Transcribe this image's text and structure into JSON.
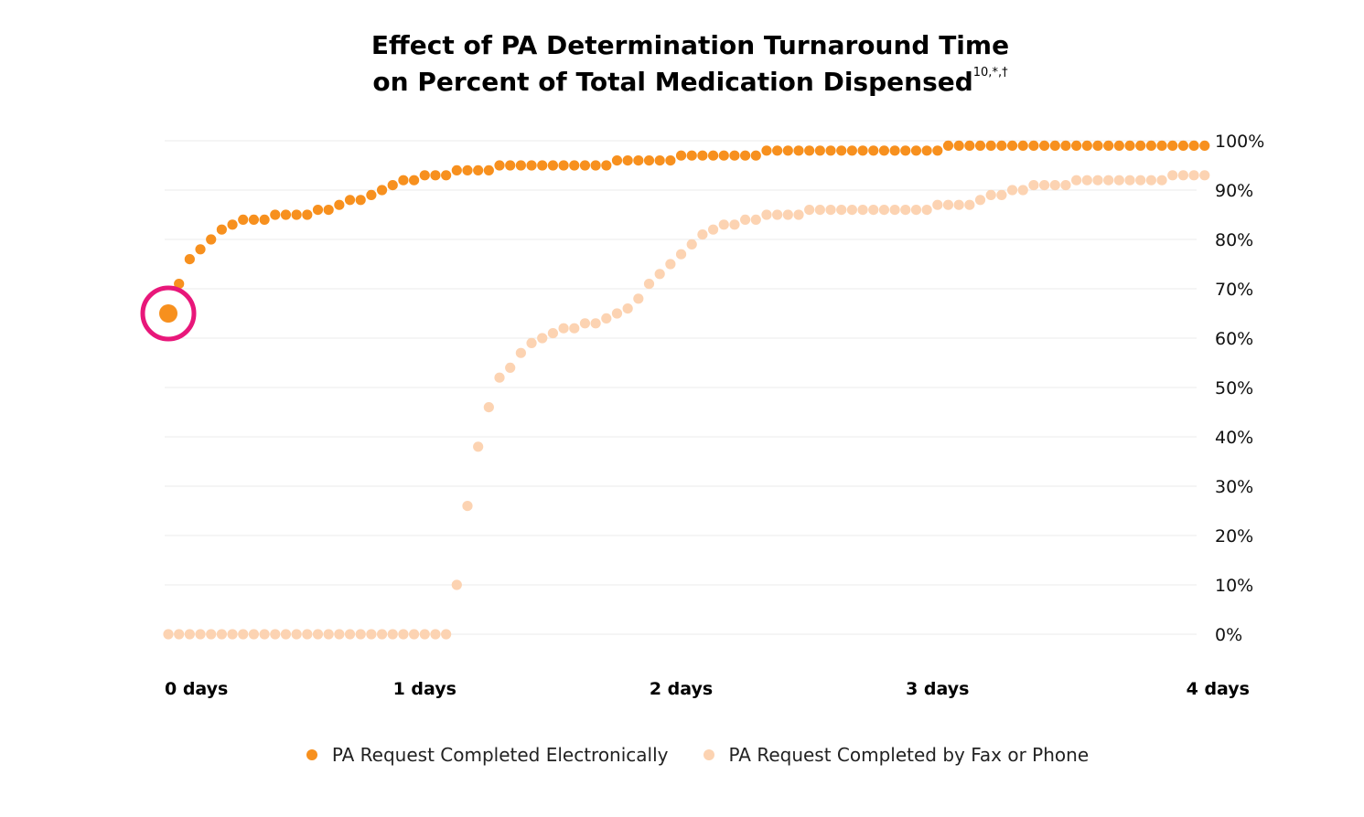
{
  "colors": {
    "electronic": "#f7901e",
    "fax": "#fcd3b2",
    "highlight": "#e8177a",
    "grid": "#ebebeb"
  },
  "chart_data": {
    "type": "scatter",
    "title_line1": "Effect of PA Determination Turnaround Time",
    "title_line2": "on Percent of Total Medication Dispensed",
    "title_sup": "10,*,†",
    "xlabel": "",
    "ylabel": "",
    "xlim": [
      0,
      4
    ],
    "ylim": [
      0,
      100
    ],
    "x_ticks": [
      "0 days",
      "1 days",
      "2 days",
      "3 days",
      "4 days"
    ],
    "y_ticks": [
      "0%",
      "10%",
      "20%",
      "30%",
      "40%",
      "50%",
      "60%",
      "70%",
      "80%",
      "90%",
      "100%"
    ],
    "y_tick_values": [
      0,
      10,
      20,
      30,
      40,
      50,
      60,
      70,
      80,
      90,
      100
    ],
    "point_step_days": 0.04167,
    "highlight": {
      "series": 0,
      "index": 0,
      "label": "highlighted first point"
    },
    "series": [
      {
        "name": "PA Request Completed Electronically",
        "values": [
          65,
          71,
          76,
          78,
          80,
          82,
          83,
          84,
          84,
          84,
          85,
          85,
          85,
          85,
          86,
          86,
          87,
          88,
          88,
          89,
          90,
          91,
          92,
          92,
          93,
          93,
          93,
          94,
          94,
          94,
          94,
          95,
          95,
          95,
          95,
          95,
          95,
          95,
          95,
          95,
          95,
          95,
          96,
          96,
          96,
          96,
          96,
          96,
          97,
          97,
          97,
          97,
          97,
          97,
          97,
          97,
          98,
          98,
          98,
          98,
          98,
          98,
          98,
          98,
          98,
          98,
          98,
          98,
          98,
          98,
          98,
          98,
          98,
          99,
          99,
          99,
          99,
          99,
          99,
          99,
          99,
          99,
          99,
          99,
          99,
          99,
          99,
          99,
          99,
          99,
          99,
          99,
          99,
          99,
          99,
          99,
          99,
          99
        ]
      },
      {
        "name": "PA Request Completed by Fax or Phone",
        "values": [
          0,
          0,
          0,
          0,
          0,
          0,
          0,
          0,
          0,
          0,
          0,
          0,
          0,
          0,
          0,
          0,
          0,
          0,
          0,
          0,
          0,
          0,
          0,
          0,
          0,
          0,
          0,
          10,
          26,
          38,
          46,
          52,
          54,
          57,
          59,
          60,
          61,
          62,
          62,
          63,
          63,
          64,
          65,
          66,
          68,
          71,
          73,
          75,
          77,
          79,
          81,
          82,
          83,
          83,
          84,
          84,
          85,
          85,
          85,
          85,
          86,
          86,
          86,
          86,
          86,
          86,
          86,
          86,
          86,
          86,
          86,
          86,
          87,
          87,
          87,
          87,
          88,
          89,
          89,
          90,
          90,
          91,
          91,
          91,
          91,
          92,
          92,
          92,
          92,
          92,
          92,
          92,
          92,
          92,
          93,
          93,
          93,
          93
        ]
      }
    ]
  }
}
